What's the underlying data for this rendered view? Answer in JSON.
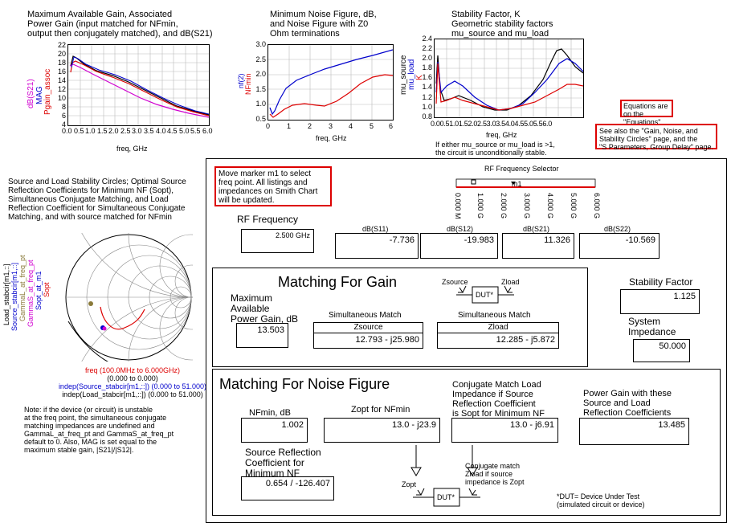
{
  "gain_plot": {
    "title_lines": [
      "Maximum Available Gain, Associated",
      "Power Gain (input matched for NFmin,",
      "output then conjugately matched), and dB(S21)"
    ],
    "ylabels": [
      "dB(S21)",
      "MAG",
      "Pgain_assoc"
    ],
    "yticks": [
      "22",
      "20",
      "18",
      "16",
      "14",
      "12",
      "10",
      "8",
      "6",
      "4"
    ],
    "xticks": [
      "0.0",
      "0.5",
      "1.0",
      "1.5",
      "2.0",
      "2.5",
      "3.0",
      "3.5",
      "4.0",
      "4.5",
      "5.0",
      "5.5",
      "6.0"
    ],
    "xlabel": "freq, GHz"
  },
  "noise_plot": {
    "title_lines": [
      "Minimum Noise Figure, dB,",
      "and Noise Figure with Z0",
      "Ohm terminations"
    ],
    "ylabels": [
      "nf(2)",
      "NFmin"
    ],
    "yticks": [
      "3.0",
      "2.5",
      "2.0",
      "1.5",
      "1.0",
      "0.5"
    ],
    "xticks": [
      "0",
      "1",
      "2",
      "3",
      "4",
      "5",
      "6"
    ],
    "xlabel": "freq, GHz"
  },
  "stab_plot": {
    "title_lines": [
      "Stability Factor, K",
      "Geometric stability factors",
      "mu_source and mu_load"
    ],
    "ylabels": [
      "mu_source",
      "mu_load",
      "K"
    ],
    "yticks": [
      "2.4",
      "2.2",
      "2.0",
      "1.8",
      "1.6",
      "1.4",
      "1.2",
      "1.0",
      "0.8"
    ],
    "xticks": [
      "0.0",
      "0.5",
      "1.0",
      "1.5",
      "2.0",
      "2.5",
      "3.0",
      "3.5",
      "4.0",
      "4.5",
      "5.0",
      "5.5",
      "6.0"
    ],
    "xticks_row": "0.00.51.01.52.02.53.03.54.04.55.05.56.0",
    "xlabel": "freq, GHz",
    "note_lines": [
      "If either mu_source or mu_load is >1,",
      "the circuit is unconditionally stable."
    ]
  },
  "notes": {
    "equations": [
      "Equations are on the",
      "\"Equations\" page."
    ],
    "see_also": [
      "See also the \"Gain, Noise, and",
      "Stability Circles\" page, and the",
      "\"S Parameters, Group Delay\" page."
    ],
    "marker": [
      "Move marker m1 to select",
      "freq point.  All listings and",
      "impedances on Smith Chart",
      "will be updated."
    ]
  },
  "smith": {
    "title_lines": [
      "Source and Load Stability Circles; Optimal Source",
      "Reflection Coefficients for Minimum NF (Sopt),",
      "Simultaneous Conjugate Matching, and Load",
      "Reflection Coefficient for Simultaneous Conjugate",
      "Matching, and with source matched for NFmin"
    ],
    "ylabels": [
      "Load_stabcir[m1,::]",
      "Source_stabcir[m1,::]",
      "GammaL_at_freq_pt",
      "GammaS_at_freq_pt",
      "Sopt_at_m1",
      "Sopt"
    ],
    "legend": [
      "freq (100.0MHz to 6.000GHz)",
      "(0.000 to 0.000)",
      "indep(Source_stabcir[m1,::]) (0.000 to 51.000)",
      "indep(Load_stabcir[m1,::]) (0.000 to 51.000)"
    ],
    "note_lines": [
      "Note: if the device (or circuit) is unstable",
      "at the freq point, the simultaneous conjugate",
      "matching impedances are undefined and",
      "GammaL_at_freq_pt and GammaS_at_freq_pt",
      "default to 0.  Also, MAG is set equal to the",
      "maximum stable gain, |S21|/|S12|."
    ]
  },
  "rf_selector": {
    "title": "RF Frequency Selector",
    "marker": "m1",
    "ticks": [
      "0.000 M",
      "1.000 G",
      "2.000 G",
      "3.000 G",
      "4.000 G",
      "5.000 G",
      "6.000 G"
    ]
  },
  "rf_frequency": {
    "label": "RF Frequency",
    "value": "2.500 GHz"
  },
  "sparams": [
    {
      "label": "dB(S11)",
      "value": "-7.736"
    },
    {
      "label": "dB(S12)",
      "value": "-19.983"
    },
    {
      "label": "dB(S21)",
      "value": "11.326"
    },
    {
      "label": "dB(S22)",
      "value": "-10.569"
    }
  ],
  "gain_section": {
    "title": "Matching For Gain",
    "mag_label": [
      "Maximum",
      "Available",
      "Power Gain, dB"
    ],
    "mag_value": "13.503",
    "sim_match_1": "Simultaneous Match",
    "sim_match_2": "Simultaneous Match",
    "zsource_head": "Zsource",
    "zload_head": "Zload",
    "zsource_value": "12.793 - j25.980",
    "zload_value": "12.285 - j5.872",
    "diag_zsource": "Zsource",
    "diag_zload": "Zload",
    "dut": "DUT*"
  },
  "stability": {
    "label": "Stability Factor",
    "value": "1.125"
  },
  "impedance": {
    "label": [
      "System",
      "Impedance"
    ],
    "value": "50.000"
  },
  "noise_section": {
    "title": "Matching For Noise Figure",
    "nfmin_label": "NFmin, dB",
    "nfmin_value": "1.002",
    "zopt_label": "Zopt for NFmin",
    "zopt_value": "13.0  - j23.9",
    "conj_label": [
      "Conjugate Match Load",
      "Impedance if Source",
      "Reflection Coefficient",
      "is Sopt for Minimum NF"
    ],
    "conj_value": "13.0  - j6.91",
    "pg_label": [
      "Power Gain with these",
      "Source and Load",
      "Reflection Coefficients"
    ],
    "pg_value": "13.485",
    "src_label": [
      "Source Reflection",
      "Coefficient for",
      "Minimum NF"
    ],
    "src_value": "0.654 / -126.407",
    "diag_zopt": "Zopt",
    "diag_dut": "DUT*",
    "conj_note": [
      "Conjugate match",
      "Zload if source",
      "impedance is Zopt"
    ],
    "dut_note": [
      "*DUT= Device Under Test",
      "(simulated circuit or device)"
    ]
  },
  "colors": {
    "red": "#d00000",
    "blue": "#0000cc",
    "magenta": "#d000d0",
    "black": "#000000"
  }
}
